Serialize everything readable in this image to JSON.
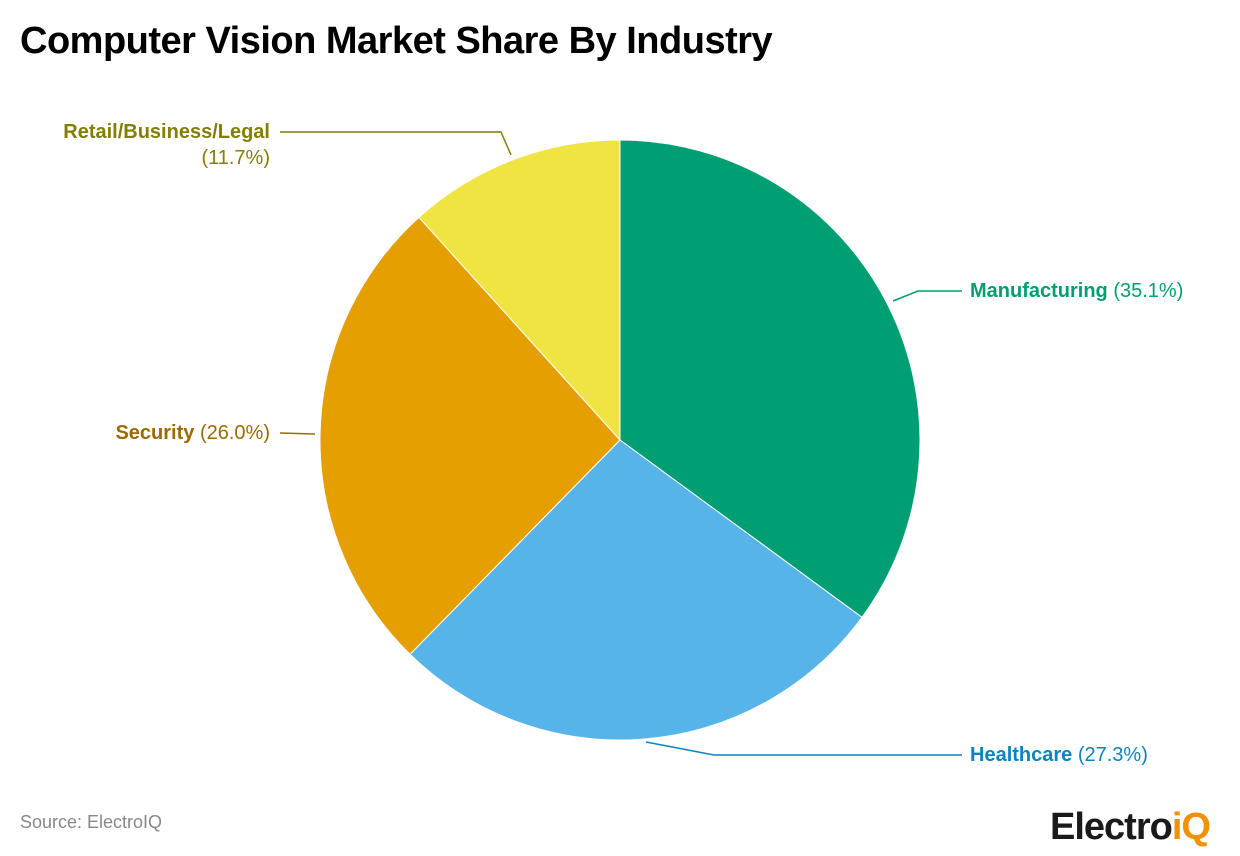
{
  "chart_data": {
    "type": "pie",
    "title": "Computer Vision Market Share By Industry",
    "start_angle": "top, clockwise",
    "slices": [
      {
        "label": "Manufacturing",
        "value": 35.1,
        "value_label": "(35.1%)",
        "color": "#009e73",
        "label_color": "#009e73"
      },
      {
        "label": "Healthcare",
        "value": 27.3,
        "value_label": "(27.3%)",
        "color": "#56b4e9",
        "label_color": "#0a84c0"
      },
      {
        "label": "Security",
        "value": 26.0,
        "value_label": "(26.0%)",
        "color": "#e69f00",
        "label_color": "#9a6b00"
      },
      {
        "label": "Retail/Business/Legal",
        "value": 11.7,
        "value_label": "(11.7%)",
        "color": "#f0e442",
        "label_color": "#857f00"
      }
    ]
  },
  "source": "Source: ElectroIQ",
  "logo": {
    "main": "Electro",
    "accent": "iQ"
  }
}
